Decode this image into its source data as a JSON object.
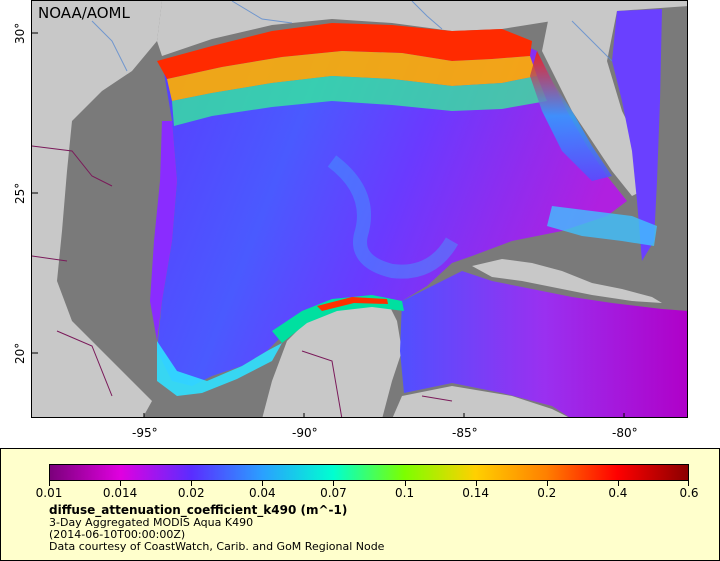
{
  "credit": "NOAA/AOML",
  "axes": {
    "x_ticks": [
      "-95°",
      "-90°",
      "-85°",
      "-80°"
    ],
    "y_ticks": [
      "30°",
      "25°",
      "20°"
    ]
  },
  "colorbar": {
    "labels": [
      "0.01",
      "0.014",
      "0.02",
      "0.04",
      "0.07",
      "0.1",
      "0.14",
      "0.2",
      "0.4",
      "0.6"
    ]
  },
  "legend": {
    "variable": "diffuse_attenuation_coefficient_k490 (m^-1)",
    "description": "3-Day Aggregated MODIS Aqua K490",
    "time": "(2014-06-10T00:00:00Z)",
    "courtesy": "Data courtesy of CoastWatch, Carib. and GoM Regional Node"
  },
  "colors": {
    "land": "#c8c8c8",
    "no_data": "#7a7a7a",
    "legend_bg": "#ffffcc",
    "scale": [
      "#7b007b",
      "#e000e0",
      "#5a2dff",
      "#2aa0ff",
      "#00ffd0",
      "#7cff00",
      "#ffd000",
      "#ff8000",
      "#ff0000",
      "#8b0000"
    ]
  }
}
